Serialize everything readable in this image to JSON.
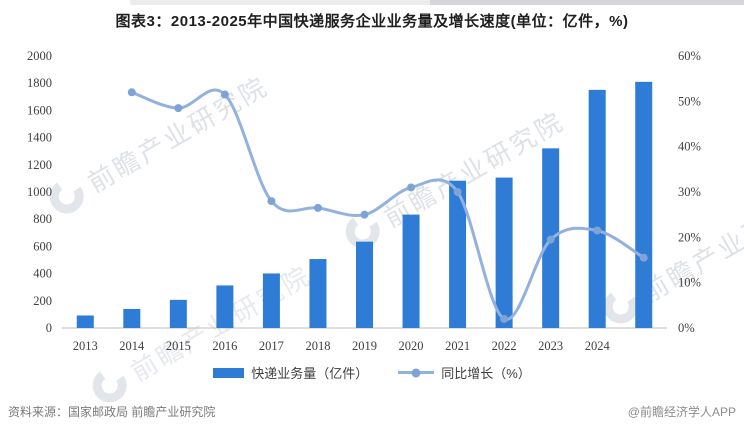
{
  "title": "图表3：2013-2025年中国快递服务企业业务量及增长速度(单位：亿件，%)",
  "chart_data": {
    "type": "bar+line combo",
    "categories": [
      "2013",
      "2014",
      "2015",
      "2016",
      "2017",
      "2018",
      "2019",
      "2020",
      "2021",
      "2022",
      "2023",
      "2024",
      ""
    ],
    "series": [
      {
        "name": "快递业务量（亿件）",
        "type": "bar",
        "axis": "left",
        "values": [
          92,
          140,
          207,
          313,
          401,
          507,
          635,
          834,
          1083,
          1106,
          1321,
          1751,
          1810
        ],
        "color": "#2e7cd6"
      },
      {
        "name": "同比增长（%）",
        "type": "line",
        "axis": "right",
        "values": [
          null,
          52,
          48.5,
          51.5,
          28,
          26.5,
          25,
          31,
          30,
          2,
          19.5,
          21.5,
          15.5
        ],
        "color": "#93b1df",
        "marker_color": "#7fa3d7"
      }
    ],
    "left_axis": {
      "min": 0,
      "max": 2000,
      "step": 200
    },
    "right_axis": {
      "min": 0,
      "max": 60,
      "step": 10,
      "suffix": "%"
    },
    "grid": false,
    "legend_position": "bottom",
    "title": "图表3：2013-2025年中国快递服务企业业务量及增长速度(单位：亿件，%)"
  },
  "legend": {
    "bar_label": "快递业务量（亿件）",
    "line_label": "同比增长（%）"
  },
  "footer": {
    "source": "资料来源：国家邮政局 前瞻产业研究院",
    "credit": "@前瞻经济学人APP"
  },
  "watermark": {
    "text": "前瞻产业研究院"
  },
  "colors": {
    "bar": "#2e7cd6",
    "line": "#93b1df",
    "line_marker": "#7fa3d7",
    "axis_text": "#3f3f3f",
    "axis_line": "#bfbfbf",
    "title_text": "#1f1f1f",
    "footer_text": "#7a7a7a"
  }
}
